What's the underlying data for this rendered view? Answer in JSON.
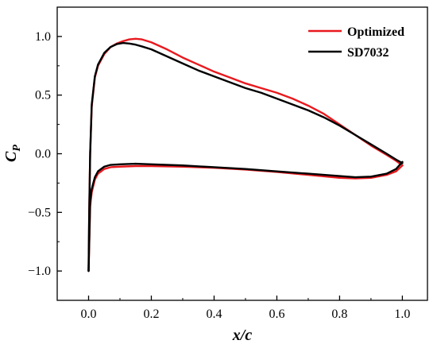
{
  "chart_data": {
    "type": "line",
    "title": "",
    "xlabel": "x/c",
    "ylabel": {
      "main": "C",
      "sub": "P"
    },
    "xlim": [
      -0.1,
      1.08
    ],
    "ylim": [
      -1.25,
      1.25
    ],
    "x_ticks": [
      0.0,
      0.2,
      0.4,
      0.6,
      0.8,
      1.0
    ],
    "x_tick_labels": [
      "0.0",
      "0.2",
      "0.4",
      "0.6",
      "0.8",
      "1.0"
    ],
    "y_ticks": [
      -1.0,
      -0.5,
      0.0,
      0.5,
      1.0
    ],
    "y_tick_labels": [
      "−1.0",
      "−0.5",
      "0.0",
      "0.5",
      "1.0"
    ],
    "grid": false,
    "legend_position": "top-right",
    "series": [
      {
        "name": "Optimized",
        "color": "#e8191e",
        "upper": {
          "x": [
            0.0,
            0.002,
            0.005,
            0.01,
            0.02,
            0.03,
            0.05,
            0.07,
            0.09,
            0.11,
            0.13,
            0.15,
            0.17,
            0.2,
            0.25,
            0.3,
            0.35,
            0.4,
            0.45,
            0.5,
            0.55,
            0.6,
            0.65,
            0.7,
            0.75,
            0.8,
            0.85,
            0.9,
            0.95,
            0.98,
            1.0
          ],
          "y": [
            -1.0,
            -0.5,
            0.0,
            0.4,
            0.65,
            0.75,
            0.85,
            0.91,
            0.94,
            0.96,
            0.975,
            0.98,
            0.975,
            0.95,
            0.89,
            0.82,
            0.76,
            0.7,
            0.65,
            0.6,
            0.56,
            0.52,
            0.47,
            0.41,
            0.34,
            0.25,
            0.16,
            0.07,
            -0.01,
            -0.06,
            -0.1
          ]
        },
        "lower": {
          "x": [
            0.0,
            0.005,
            0.01,
            0.02,
            0.03,
            0.05,
            0.07,
            0.1,
            0.15,
            0.2,
            0.3,
            0.4,
            0.5,
            0.6,
            0.7,
            0.8,
            0.85,
            0.9,
            0.95,
            0.98,
            1.0
          ],
          "y": [
            -1.0,
            -0.45,
            -0.33,
            -0.22,
            -0.17,
            -0.13,
            -0.115,
            -0.11,
            -0.105,
            -0.105,
            -0.11,
            -0.12,
            -0.135,
            -0.155,
            -0.18,
            -0.205,
            -0.21,
            -0.205,
            -0.18,
            -0.15,
            -0.1
          ]
        }
      },
      {
        "name": "SD7032",
        "color": "#000000",
        "upper": {
          "x": [
            0.0,
            0.002,
            0.005,
            0.01,
            0.02,
            0.03,
            0.05,
            0.07,
            0.09,
            0.11,
            0.13,
            0.15,
            0.17,
            0.2,
            0.25,
            0.3,
            0.35,
            0.4,
            0.45,
            0.5,
            0.55,
            0.6,
            0.65,
            0.7,
            0.75,
            0.8,
            0.85,
            0.9,
            0.95,
            0.98,
            1.0
          ],
          "y": [
            -1.0,
            -0.5,
            0.0,
            0.42,
            0.66,
            0.76,
            0.86,
            0.91,
            0.935,
            0.945,
            0.94,
            0.93,
            0.915,
            0.89,
            0.83,
            0.77,
            0.71,
            0.66,
            0.61,
            0.56,
            0.52,
            0.47,
            0.42,
            0.37,
            0.31,
            0.24,
            0.16,
            0.08,
            0.0,
            -0.05,
            -0.08
          ]
        },
        "lower": {
          "x": [
            0.0,
            0.005,
            0.01,
            0.02,
            0.03,
            0.05,
            0.07,
            0.1,
            0.15,
            0.2,
            0.3,
            0.4,
            0.5,
            0.6,
            0.7,
            0.8,
            0.85,
            0.9,
            0.95,
            0.98,
            1.0
          ],
          "y": [
            -1.0,
            -0.4,
            -0.3,
            -0.2,
            -0.15,
            -0.11,
            -0.095,
            -0.09,
            -0.085,
            -0.09,
            -0.1,
            -0.115,
            -0.13,
            -0.15,
            -0.17,
            -0.19,
            -0.2,
            -0.195,
            -0.17,
            -0.13,
            -0.07
          ]
        }
      }
    ]
  }
}
